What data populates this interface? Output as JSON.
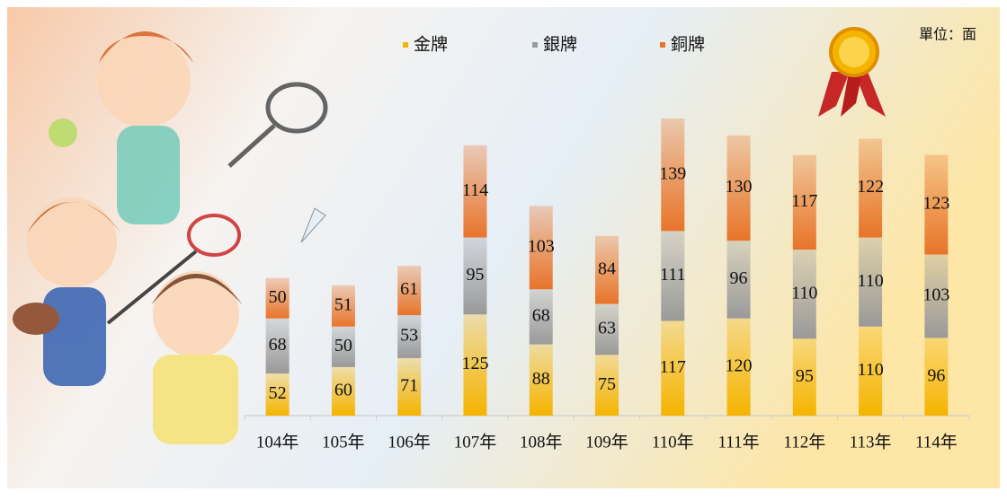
{
  "chart_data": {
    "type": "bar",
    "stacked": true,
    "unit": "單位：面",
    "categories": [
      "104年",
      "105年",
      "106年",
      "107年",
      "108年",
      "109年",
      "110年",
      "111年",
      "112年",
      "113年",
      "114年"
    ],
    "series": [
      {
        "name": "金牌",
        "color": "#f5b400",
        "values": [
          52,
          60,
          71,
          125,
          88,
          75,
          117,
          120,
          95,
          110,
          96
        ]
      },
      {
        "name": "銀牌",
        "color": "#9a9a9a",
        "values": [
          68,
          50,
          53,
          95,
          68,
          63,
          111,
          96,
          110,
          110,
          103
        ]
      },
      {
        "name": "銅牌",
        "color": "#e8742a",
        "values": [
          50,
          51,
          61,
          114,
          103,
          84,
          139,
          130,
          117,
          122,
          123
        ]
      }
    ]
  }
}
